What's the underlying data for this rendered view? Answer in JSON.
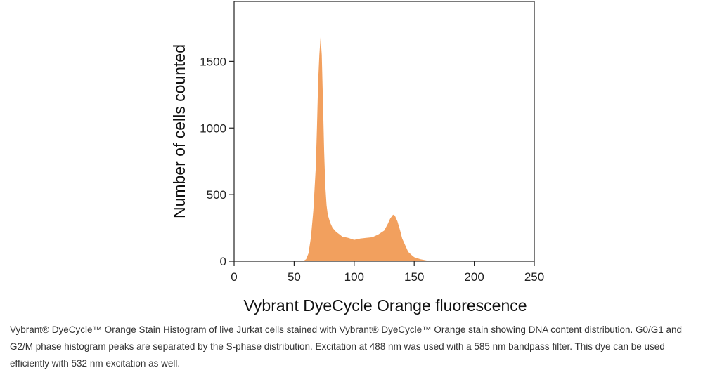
{
  "chart_data": {
    "type": "area",
    "title": "",
    "xlabel": "Vybrant DyeCycle Orange fluorescence",
    "ylabel": "Number of cells counted",
    "xlim": [
      0,
      250
    ],
    "ylim": [
      0,
      1950
    ],
    "x_ticks": [
      0,
      50,
      100,
      150,
      200,
      250
    ],
    "y_ticks": [
      0,
      500,
      1000,
      1500
    ],
    "grid": false,
    "fill_color": "#F2A05E",
    "x": [
      55,
      58,
      60,
      62,
      64,
      66,
      68,
      69,
      70,
      71,
      72,
      73,
      74,
      75,
      76,
      77,
      78,
      80,
      82,
      85,
      88,
      90,
      95,
      100,
      105,
      110,
      115,
      120,
      125,
      128,
      130,
      132,
      133,
      134,
      136,
      138,
      140,
      143,
      145,
      148,
      150,
      155,
      160,
      165,
      170
    ],
    "values": [
      0,
      3,
      15,
      60,
      180,
      380,
      700,
      1000,
      1350,
      1550,
      1680,
      1550,
      1200,
      820,
      560,
      420,
      350,
      290,
      250,
      220,
      200,
      185,
      175,
      160,
      170,
      175,
      180,
      200,
      230,
      280,
      320,
      345,
      350,
      340,
      300,
      240,
      170,
      110,
      70,
      45,
      30,
      15,
      6,
      2,
      0
    ]
  },
  "caption": "Vybrant® DyeCycle™ Orange Stain Histogram of live Jurkat cells stained with Vybrant® DyeCycle™ Orange stain showing DNA content distribution. G0/G1 and G2/M phase histogram peaks are separated by the S-phase distribution. Excitation at 488 nm was used with a 585 nm bandpass filter. This dye can be used efficiently with 532 nm excitation as well."
}
